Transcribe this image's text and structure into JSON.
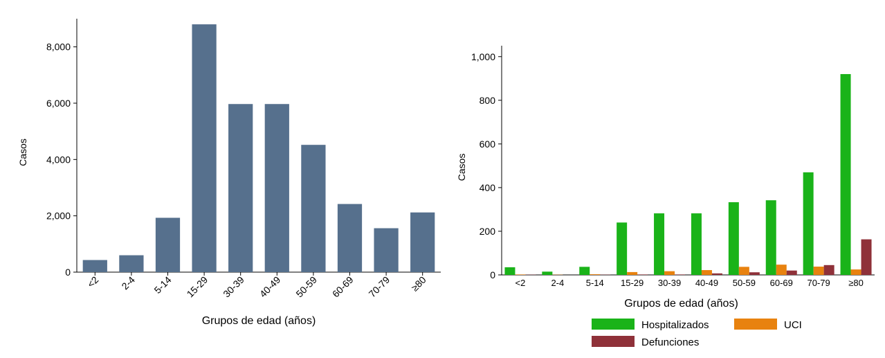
{
  "chart_data": [
    {
      "type": "bar",
      "xlabel": "Grupos de edad (años)",
      "ylabel": "Casos",
      "categories": [
        "<2",
        "2-4",
        "5-14",
        "15-29",
        "30-39",
        "40-49",
        "50-59",
        "60-69",
        "70-79",
        "≥80"
      ],
      "values": [
        430,
        600,
        1930,
        8800,
        5970,
        5970,
        4520,
        2420,
        1560,
        2120
      ],
      "ylim": [
        0,
        9000
      ],
      "yticks": [
        0,
        2000,
        4000,
        6000,
        8000
      ],
      "ytick_labels": [
        "0",
        "2,000",
        "4,000",
        "6,000",
        "8,000"
      ],
      "colors": {
        "bar": "#56708d"
      },
      "grid": false
    },
    {
      "type": "bar",
      "xlabel": "Grupos de edad (años)",
      "ylabel": "Casos",
      "categories": [
        "<2",
        "2-4",
        "5-14",
        "15-29",
        "30-39",
        "40-49",
        "50-59",
        "60-69",
        "70-79",
        "≥80"
      ],
      "series": [
        {
          "name": "Hospitalizados",
          "color": "#1ab319",
          "values": [
            35,
            15,
            37,
            240,
            282,
            282,
            333,
            342,
            470,
            920
          ]
        },
        {
          "name": "UCI",
          "color": "#e8820f",
          "values": [
            2,
            1,
            3,
            13,
            17,
            22,
            37,
            47,
            38,
            25
          ]
        },
        {
          "name": "Defunciones",
          "color": "#8f3139",
          "values": [
            1,
            0,
            1,
            2,
            2,
            7,
            12,
            20,
            45,
            163
          ]
        }
      ],
      "ylim": [
        0,
        1050
      ],
      "yticks": [
        0,
        200,
        400,
        600,
        800,
        1000
      ],
      "ytick_labels": [
        "0",
        "200",
        "400",
        "600",
        "800",
        "1,000"
      ],
      "legend": "bottom",
      "grid": false
    }
  ]
}
